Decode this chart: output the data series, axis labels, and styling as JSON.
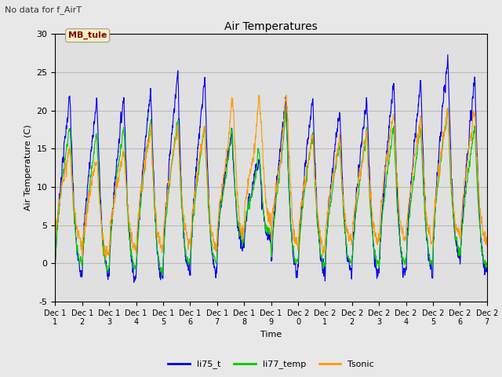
{
  "title": "Air Temperatures",
  "xlabel": "Time",
  "ylabel": "Air Temperature (C)",
  "ylim": [
    -5,
    30
  ],
  "background_note": "No data for f_AirT",
  "annotation_text": "MB_tule",
  "annotation_color": "#880000",
  "plot_bg_color": "#e0e0e0",
  "fig_bg_color": "#e8e8e8",
  "series": {
    "li75_t": {
      "color": "#0000ee",
      "linewidth": 0.8
    },
    "li77_temp": {
      "color": "#00cc00",
      "linewidth": 0.8
    },
    "Tsonic": {
      "color": "#ff9900",
      "linewidth": 0.8
    }
  },
  "xtick_labels": [
    "Dec 1\n1",
    "Dec 1\n2",
    "Dec 1\n3",
    "Dec 1\n4",
    "Dec 1\n5",
    "Dec 1\n6",
    "Dec 1\n7",
    "Dec 1\n8",
    "Dec 1\n9",
    "Dec 2\n0",
    "Dec 2\n1",
    "Dec 2\n2",
    "Dec 2\n3",
    "Dec 2\n4",
    "Dec 2\n5",
    "Dec 2\n6",
    "Dec 27"
  ],
  "ytick_values": [
    -5,
    0,
    5,
    10,
    15,
    20,
    25,
    30
  ],
  "grid_color": "#c8c8c8",
  "n_days": 16,
  "points_per_day": 144,
  "figsize": [
    6.4,
    4.8
  ],
  "dpi": 100
}
